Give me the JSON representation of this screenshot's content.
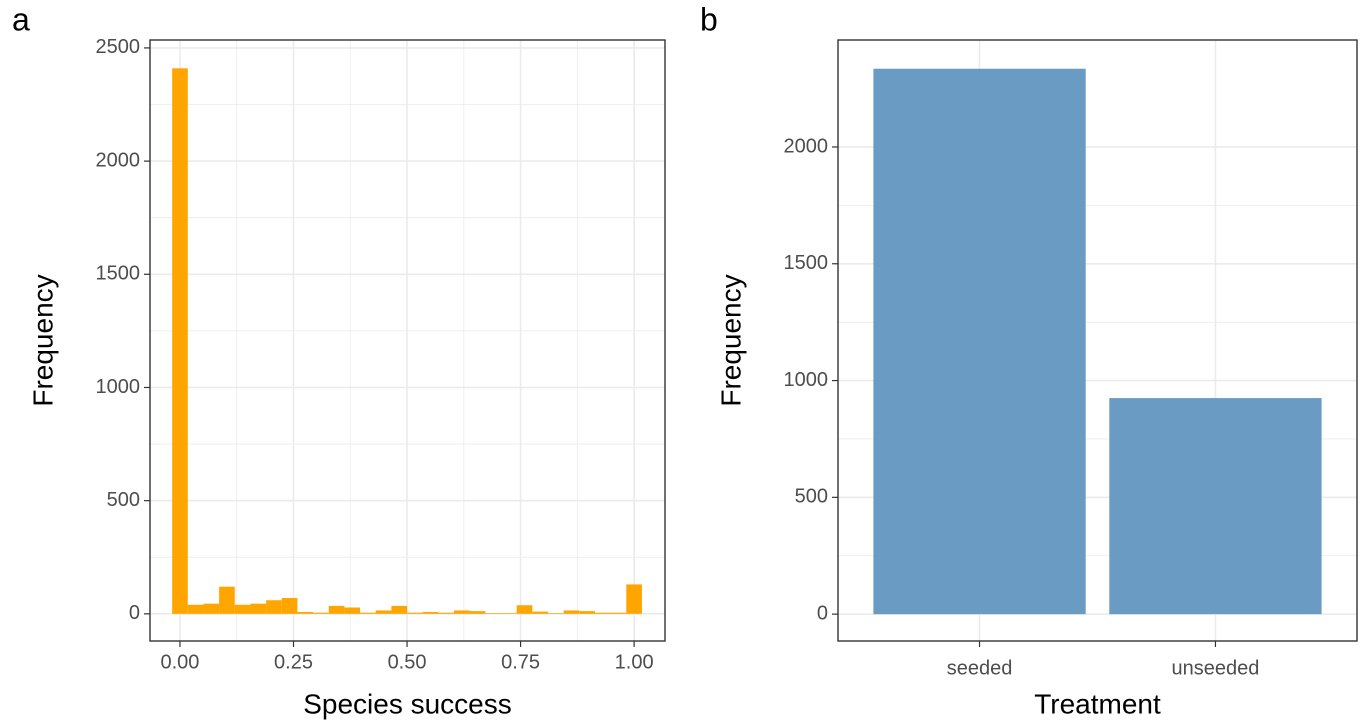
{
  "chart_data": [
    {
      "type": "histogram",
      "label": "a",
      "x_label": "Species success",
      "y_label": "Frequency",
      "bins": [
        -0.0172,
        0.0172,
        0.0517,
        0.0862,
        0.1207,
        0.1552,
        0.1897,
        0.2241,
        0.2586,
        0.2931,
        0.3276,
        0.3621,
        0.3966,
        0.431,
        0.4655,
        0.5,
        0.5345,
        0.569,
        0.6034,
        0.6379,
        0.6724,
        0.7069,
        0.7414,
        0.7759,
        0.8103,
        0.8448,
        0.8793,
        0.9138,
        0.9483,
        0.9828,
        1.0172
      ],
      "values": [
        2410,
        40,
        45,
        120,
        40,
        45,
        60,
        70,
        8,
        5,
        35,
        28,
        5,
        15,
        35,
        5,
        8,
        5,
        15,
        12,
        3,
        3,
        38,
        10,
        3,
        15,
        12,
        5,
        5,
        130
      ],
      "color": "#ffa500",
      "xlim": [
        -0.066,
        1.068
      ],
      "xticks": [
        {
          "value": 0,
          "label": "0.00"
        },
        {
          "value": 0.25,
          "label": "0.25"
        },
        {
          "value": 0.5,
          "label": "0.50"
        },
        {
          "value": 0.75,
          "label": "0.75"
        },
        {
          "value": 1,
          "label": "1.00"
        }
      ],
      "ylim": [
        -120,
        2535
      ],
      "yticks": [
        0,
        500,
        1000,
        1500,
        2000,
        2500
      ],
      "grid": true
    },
    {
      "type": "bar",
      "label": "b",
      "x_label": "Treatment",
      "y_label": "Frequency",
      "categories": [
        "seeded",
        "unseeded"
      ],
      "values": [
        2335,
        925
      ],
      "color": "#6a9bc3",
      "ylim": [
        -115,
        2458
      ],
      "yticks": [
        0,
        500,
        1000,
        1500,
        2000
      ],
      "grid": true
    }
  ]
}
